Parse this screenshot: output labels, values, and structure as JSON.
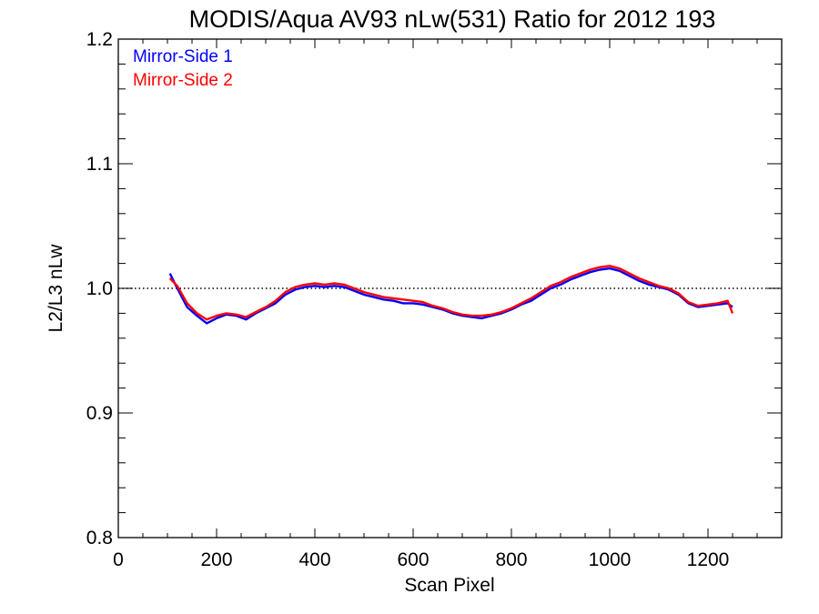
{
  "chart_data": {
    "type": "line",
    "title": "MODIS/Aqua AV93 nLw(531) Ratio for 2012 193",
    "xlabel": "Scan Pixel",
    "ylabel": "L2/L3 nLw",
    "xlim": [
      0,
      1350
    ],
    "ylim": [
      0.8,
      1.2
    ],
    "x_ticks": [
      0,
      200,
      400,
      600,
      800,
      1000,
      1200
    ],
    "y_ticks": [
      0.8,
      0.9,
      1.0,
      1.1,
      1.2
    ],
    "x_tick_labels": [
      "0",
      "200",
      "400",
      "600",
      "800",
      "1000",
      "1200"
    ],
    "y_tick_labels": [
      "0.8",
      "0.9",
      "1.0",
      "1.1",
      "1.2"
    ],
    "reference_line": 1.0,
    "grid": false,
    "legend_position": "top-left",
    "x": [
      105,
      120,
      140,
      160,
      180,
      200,
      220,
      240,
      260,
      280,
      300,
      320,
      340,
      360,
      380,
      400,
      420,
      440,
      460,
      480,
      500,
      520,
      540,
      560,
      580,
      600,
      620,
      640,
      660,
      680,
      700,
      720,
      740,
      760,
      780,
      800,
      820,
      840,
      860,
      880,
      900,
      920,
      940,
      960,
      980,
      1000,
      1020,
      1040,
      1060,
      1080,
      1100,
      1120,
      1140,
      1160,
      1180,
      1200,
      1220,
      1240,
      1250
    ],
    "series": [
      {
        "name": "Mirror-Side 1",
        "color": "#0000ff",
        "values": [
          1.012,
          1.0,
          0.985,
          0.978,
          0.972,
          0.976,
          0.979,
          0.978,
          0.975,
          0.98,
          0.984,
          0.988,
          0.995,
          0.999,
          1.001,
          1.002,
          1.001,
          1.002,
          1.001,
          0.998,
          0.995,
          0.993,
          0.991,
          0.99,
          0.988,
          0.988,
          0.987,
          0.985,
          0.983,
          0.98,
          0.978,
          0.977,
          0.976,
          0.978,
          0.98,
          0.983,
          0.987,
          0.99,
          0.995,
          1.0,
          1.003,
          1.007,
          1.01,
          1.013,
          1.015,
          1.016,
          1.014,
          1.01,
          1.006,
          1.003,
          1.001,
          0.999,
          0.995,
          0.988,
          0.985,
          0.986,
          0.987,
          0.988,
          0.985
        ]
      },
      {
        "name": "Mirror-Side 2",
        "color": "#ff0000",
        "values": [
          1.008,
          1.002,
          0.988,
          0.98,
          0.975,
          0.978,
          0.98,
          0.979,
          0.977,
          0.981,
          0.985,
          0.99,
          0.997,
          1.001,
          1.003,
          1.004,
          1.003,
          1.004,
          1.003,
          1.0,
          0.997,
          0.995,
          0.993,
          0.992,
          0.991,
          0.99,
          0.989,
          0.986,
          0.984,
          0.981,
          0.979,
          0.978,
          0.978,
          0.979,
          0.981,
          0.984,
          0.988,
          0.992,
          0.997,
          1.002,
          1.005,
          1.009,
          1.012,
          1.015,
          1.017,
          1.018,
          1.016,
          1.012,
          1.008,
          1.005,
          1.002,
          1.0,
          0.996,
          0.989,
          0.986,
          0.987,
          0.988,
          0.99,
          0.98
        ]
      }
    ]
  }
}
